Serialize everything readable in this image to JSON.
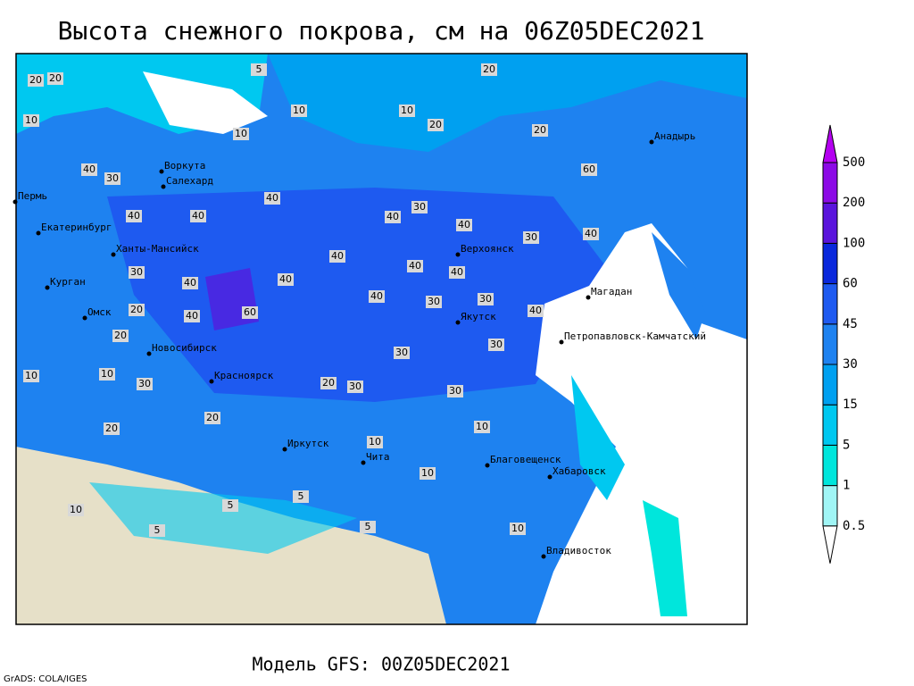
{
  "title": "Высота снежного покрова, см на 06Z05DEC2021",
  "model": "Модель GFS: 00Z05DEC2021",
  "credit": "GrADS: COLA/IGES",
  "legend": {
    "levels": [
      0.5,
      1,
      5,
      15,
      30,
      45,
      60,
      100,
      200,
      500
    ],
    "colors": [
      "#ffffff",
      "#a0f5f5",
      "#00e6dc",
      "#00c8f0",
      "#00a0f0",
      "#1e82f0",
      "#1e5af0",
      "#0a28dc",
      "#5a14dc",
      "#8c0ae6",
      "#b400f0"
    ]
  },
  "cities": [
    "Воркута",
    "Салехард",
    "Пермь",
    "Екатеринбург",
    "Ханты-Мансийск",
    "Курган",
    "Омск",
    "Новосибирск",
    "Красноярск",
    "Верхоянск",
    "Якутск",
    "Магадан",
    "Анадырь",
    "Петропавловск-Камчатский",
    "Иркутск",
    "Чита",
    "Благовещенск",
    "Хабаровск",
    "Владивосток"
  ],
  "contour_labels": [
    20,
    20,
    5,
    20,
    10,
    10,
    10,
    10,
    20,
    20,
    40,
    30,
    40,
    30,
    40,
    40,
    40,
    40,
    30,
    40,
    30,
    40,
    40,
    40,
    60,
    40,
    40,
    30,
    30,
    40,
    30,
    20,
    20,
    10,
    10,
    30,
    30,
    20,
    20,
    10,
    5,
    5,
    10,
    10,
    5,
    5,
    10,
    20,
    30,
    40,
    40,
    30,
    60,
    10
  ]
}
